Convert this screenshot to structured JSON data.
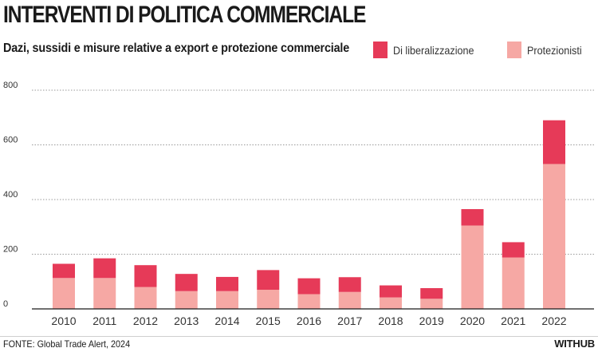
{
  "header": {
    "title": "INTERVENTI DI POLITICA COMMERCIALE",
    "subtitle": "Dazi, sussidi e misure relative a export e protezione commerciale"
  },
  "legend": [
    {
      "label": "Di liberalizzazione",
      "color": "#e63a58"
    },
    {
      "label": "Protezionisti",
      "color": "#f6a8a4"
    }
  ],
  "footer": {
    "source": "FONTE: Global Trade Alert, 2024",
    "brand": "WITHUB"
  },
  "chart_data": {
    "type": "bar",
    "stacked": true,
    "title": "INTERVENTI DI POLITICA COMMERCIALE",
    "subtitle": "Dazi, sussidi e misure relative a export e protezione commerciale",
    "xlabel": "",
    "ylabel": "",
    "ylim": [
      0,
      800
    ],
    "yticks": [
      0,
      200,
      400,
      600,
      800
    ],
    "grid": true,
    "legend_position": "top-right",
    "categories": [
      "2010",
      "2011",
      "2012",
      "2013",
      "2014",
      "2015",
      "2016",
      "2017",
      "2018",
      "2019",
      "2020",
      "2021",
      "2022"
    ],
    "series": [
      {
        "name": "Protezionisti",
        "color": "#f6a8a4",
        "values": [
          113,
          113,
          80,
          65,
          65,
          70,
          54,
          62,
          42,
          37,
          305,
          188,
          530
        ]
      },
      {
        "name": "Di liberalizzazione",
        "color": "#e63a58",
        "values": [
          52,
          72,
          80,
          63,
          52,
          72,
          58,
          54,
          44,
          39,
          60,
          56,
          160
        ]
      }
    ]
  }
}
